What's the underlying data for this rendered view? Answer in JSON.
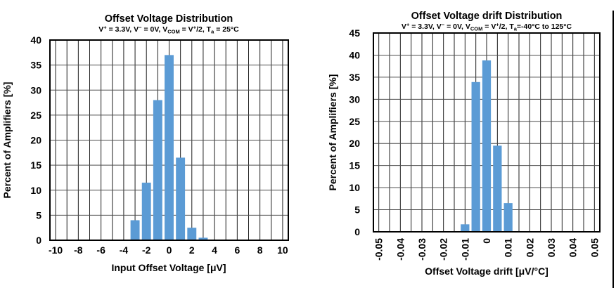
{
  "figure": {
    "background": "#ffffff",
    "border_color": "#000000"
  },
  "chart_data": [
    {
      "type": "bar",
      "title": "Offset Voltage Distribution",
      "subtitle_text": "V+ = 3.3V, V- = 0V, VCOM = V+/2, Ta = 25°C",
      "subtitle_segments": [
        {
          "text": "V"
        },
        {
          "text": "+",
          "style": "sup"
        },
        {
          "text": " = 3.3V, V"
        },
        {
          "text": "−",
          "style": "sup"
        },
        {
          "text": " = 0V, V"
        },
        {
          "text": "COM",
          "style": "sub"
        },
        {
          "text": " = V"
        },
        {
          "text": "+",
          "style": "sup"
        },
        {
          "text": "/2, T"
        },
        {
          "text": "a",
          "style": "sub"
        },
        {
          "text": " = 25°C"
        }
      ],
      "xlabel": "Input Offset Voltage [μV]",
      "ylabel": "Percent of Amplifiers [%]",
      "xlim": [
        -10.5,
        10.5
      ],
      "x_grid_step": 1,
      "x_tick_values": [
        -10,
        -8,
        -6,
        -4,
        -2,
        0,
        2,
        4,
        6,
        8,
        10
      ],
      "x_tick_labels": [
        "-10",
        "-8",
        "-6",
        "-4",
        "-2",
        "0",
        "2",
        "4",
        "6",
        "8",
        "10"
      ],
      "x_tick_rotated": false,
      "ylim": [
        0,
        40
      ],
      "y_tick_step": 5,
      "y_tick_values": [
        0,
        5,
        10,
        15,
        20,
        25,
        30,
        35,
        40
      ],
      "y_tick_labels": [
        "0",
        "5",
        "10",
        "15",
        "20",
        "25",
        "30",
        "35",
        "40"
      ],
      "grid": true,
      "bar_color": "#5B9BD5",
      "bars": {
        "centers": [
          -3,
          -2,
          -1,
          0,
          1,
          2,
          3
        ],
        "values": [
          4,
          11.5,
          28,
          37,
          16.5,
          2.5,
          0.5
        ],
        "width_units": 0.8
      }
    },
    {
      "type": "bar",
      "title": "Offset Voltage drift Distribution",
      "subtitle_text": "V+ = 3.3V, V- = 0V, VCOM = V+/2, Ta=-40°C to 125°C",
      "subtitle_segments": [
        {
          "text": "V"
        },
        {
          "text": "+",
          "style": "sup"
        },
        {
          "text": " = 3.3V, V"
        },
        {
          "text": "−",
          "style": "sup"
        },
        {
          "text": " = 0V, V"
        },
        {
          "text": "COM",
          "style": "sub"
        },
        {
          "text": " = V"
        },
        {
          "text": "+",
          "style": "sup"
        },
        {
          "text": "/2, T"
        },
        {
          "text": "a",
          "style": "sub"
        },
        {
          "text": "=-40°C to 125°C"
        }
      ],
      "xlabel": "Offset Voltage drift [μV/°C]",
      "ylabel": "Percent of Amplifiers [%]",
      "xlim": [
        -0.0525,
        0.0525
      ],
      "x_grid_step": 0.005,
      "x_tick_values": [
        -0.05,
        -0.04,
        -0.03,
        -0.02,
        -0.01,
        0,
        0.01,
        0.02,
        0.03,
        0.04,
        0.05
      ],
      "x_tick_labels": [
        "-0.05",
        "-0.04",
        "-0.03",
        "-0.02",
        "-0.01",
        "0",
        "0.01",
        "0.02",
        "0.03",
        "0.04",
        "0.05"
      ],
      "x_tick_rotated": true,
      "ylim": [
        0,
        45
      ],
      "y_tick_step": 5,
      "y_tick_values": [
        0,
        5,
        10,
        15,
        20,
        25,
        30,
        35,
        40,
        45
      ],
      "y_tick_labels": [
        "0",
        "5",
        "10",
        "15",
        "20",
        "25",
        "30",
        "35",
        "40",
        "45"
      ],
      "grid": true,
      "bar_color": "#5B9BD5",
      "bars": {
        "centers": [
          -0.01,
          -0.005,
          0,
          0.005,
          0.01
        ],
        "values": [
          1.7,
          33.9,
          38.8,
          19.5,
          6.5
        ],
        "width_units": 0.004
      }
    }
  ]
}
